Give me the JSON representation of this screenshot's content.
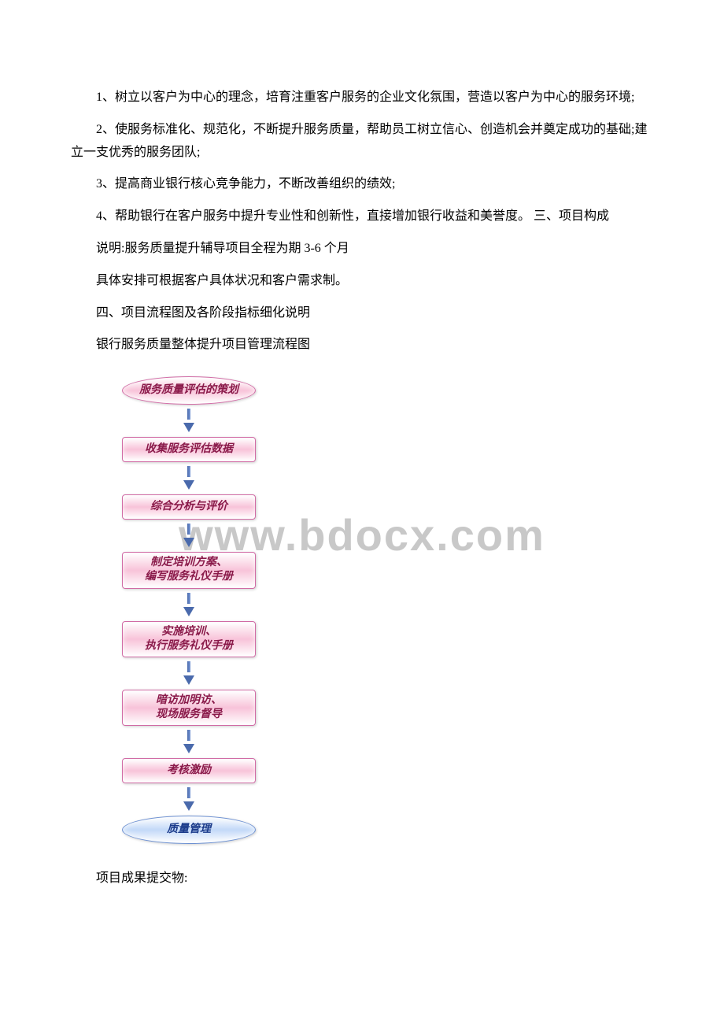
{
  "paragraphs": {
    "p1": "1、树立以客户为中心的理念，培育注重客户服务的企业文化氛围，营造以客户为中心的服务环境;",
    "p2": "2、使服务标准化、规范化，不断提升服务质量，帮助员工树立信心、创造机会并奠定成功的基础;建立一支优秀的服务团队;",
    "p3": "3、提高商业银行核心竞争能力，不断改善组织的绩效;",
    "p4": "4、帮助银行在客户服务中提升专业性和创新性，直接增加银行收益和美誉度。 三、项目构成",
    "p5": "说明:服务质量提升辅导项目全程为期 3-6 个月",
    "p6": "具体安排可根据客户具体状况和客户需求制。",
    "p7": "四、项目流程图及各阶段指标细化说明",
    "p8": "银行服务质量整体提升项目管理流程图",
    "p9": "项目成果提交物:"
  },
  "flowchart": {
    "nodes": [
      {
        "label": "服务质量评估的策划",
        "shape": "oval",
        "bg": "#f8c3d9",
        "border": "#d16ba5",
        "color": "#8a1a4a"
      },
      {
        "label": "收集服务评估数据",
        "shape": "rect",
        "bg": "#f8c3d9",
        "border": "#d16ba5",
        "color": "#8a1a4a"
      },
      {
        "label": "综合分析与评价",
        "shape": "rect",
        "bg": "#f8c3d9",
        "border": "#d16ba5",
        "color": "#8a1a4a"
      },
      {
        "label": "制定培训方案、\n编写服务礼仪手册",
        "shape": "rect",
        "bg": "#f8c3d9",
        "border": "#d16ba5",
        "color": "#8a1a4a"
      },
      {
        "label": "实施培训、\n执行服务礼仪手册",
        "shape": "rect",
        "bg": "#f8c3d9",
        "border": "#d16ba5",
        "color": "#8a1a4a"
      },
      {
        "label": "暗访加明访、\n现场服务督导",
        "shape": "rect",
        "bg": "#f8c3d9",
        "border": "#d16ba5",
        "color": "#8a1a4a"
      },
      {
        "label": "考核激励",
        "shape": "rect",
        "bg": "#f8c3d9",
        "border": "#d16ba5",
        "color": "#8a1a4a"
      },
      {
        "label": "质量管理",
        "shape": "oval",
        "bg": "#c3d9f8",
        "border": "#6b8fd1",
        "color": "#1a3a8a"
      }
    ],
    "arrow_color": "#4a6aac"
  },
  "watermark": "www.bdocx.com"
}
